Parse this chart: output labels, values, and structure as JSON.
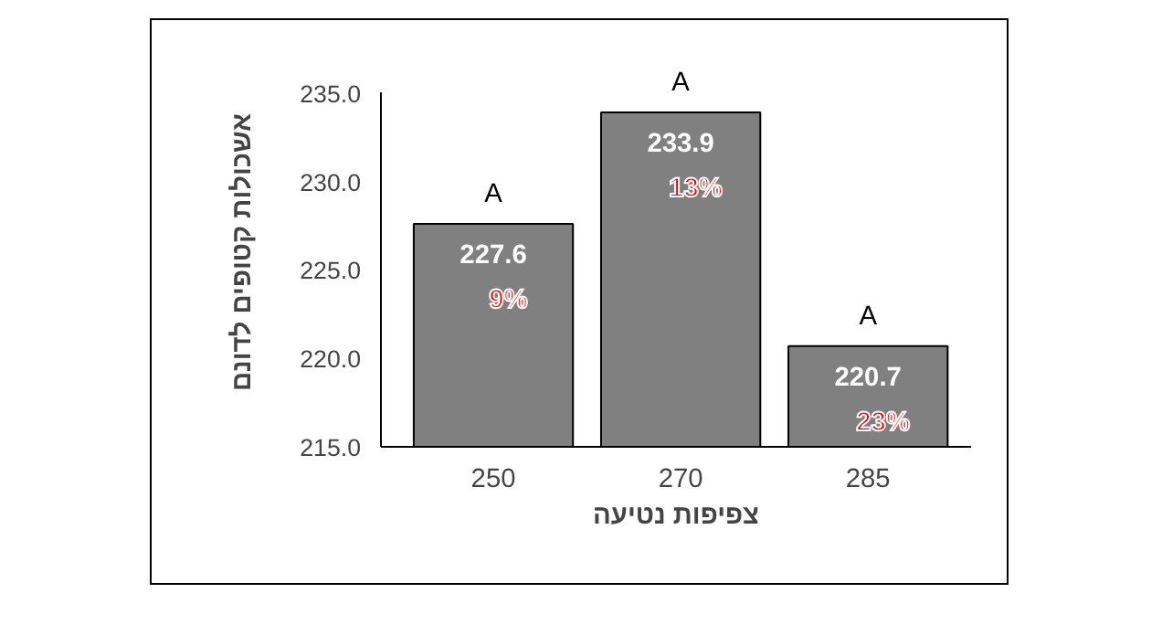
{
  "chart_data": {
    "type": "bar",
    "xlabel": "צפיפות נטיעה",
    "ylabel": "אשכולות קטופים לדונם",
    "categories": [
      "250",
      "270",
      "285"
    ],
    "values": [
      227.6,
      233.9,
      220.7
    ],
    "color": "#808080",
    "data_labels": true,
    "ylim": [
      215,
      235
    ],
    "yticks": [
      {
        "value": 215,
        "label": "215.0"
      },
      {
        "value": 220,
        "label": "220.0"
      },
      {
        "value": 225,
        "label": "225.0"
      },
      {
        "value": 230,
        "label": "230.0"
      },
      {
        "value": 235,
        "label": "235.0"
      }
    ],
    "grid": false,
    "annotations": [
      "A",
      "A",
      "A",
      "9%",
      "13%",
      "23%"
    ]
  }
}
